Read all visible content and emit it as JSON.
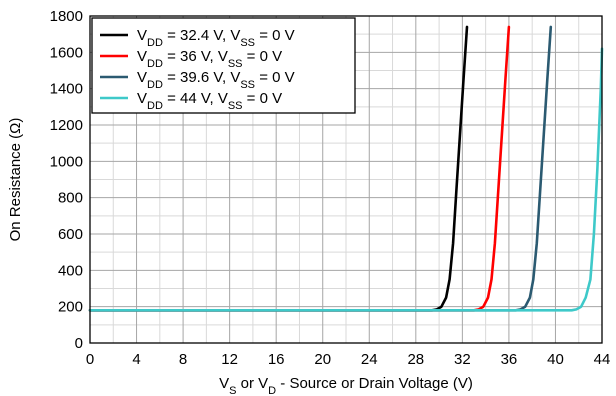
{
  "chart_data": {
    "type": "line",
    "xlabel": {
      "parts": [
        {
          "t": "V"
        },
        {
          "t": "S",
          "sub": true
        },
        {
          "t": " or V"
        },
        {
          "t": "D",
          "sub": true
        },
        {
          "t": " - Source or Drain Voltage (V)"
        }
      ]
    },
    "ylabel": "On Resistance (Ω)",
    "xlim": [
      0,
      44
    ],
    "ylim": [
      0,
      1800
    ],
    "xticks": [
      0,
      4,
      8,
      12,
      16,
      20,
      24,
      28,
      32,
      36,
      40,
      44
    ],
    "yticks": [
      0,
      200,
      400,
      600,
      800,
      1000,
      1200,
      1400,
      1600,
      1800
    ],
    "x_minor_step": 2,
    "y_minor_step": 100,
    "grid": true,
    "legend_position": "top-left",
    "series": [
      {
        "color": "#000000",
        "label": [
          {
            "t": "V"
          },
          {
            "t": "DD",
            "sub": true
          },
          {
            "t": " = 32.4 V, V"
          },
          {
            "t": "SS",
            "sub": true
          },
          {
            "t": " = 0 V"
          }
        ],
        "x": [
          0,
          29.4,
          29.8,
          30.2,
          30.6,
          30.9,
          31.2,
          31.5,
          31.8,
          32.1,
          32.4
        ],
        "y": [
          180,
          180,
          185,
          200,
          250,
          350,
          550,
          850,
          1150,
          1450,
          1740
        ]
      },
      {
        "color": "#ff0000",
        "label": [
          {
            "t": "V"
          },
          {
            "t": "DD",
            "sub": true
          },
          {
            "t": " = 36 V, V"
          },
          {
            "t": "SS",
            "sub": true
          },
          {
            "t": " = 0 V"
          }
        ],
        "x": [
          0,
          33.0,
          33.4,
          33.8,
          34.2,
          34.5,
          34.8,
          35.1,
          35.4,
          35.7,
          36.0
        ],
        "y": [
          180,
          180,
          185,
          200,
          250,
          350,
          550,
          850,
          1150,
          1450,
          1740
        ]
      },
      {
        "color": "#2b5a71",
        "label": [
          {
            "t": "V"
          },
          {
            "t": "DD",
            "sub": true
          },
          {
            "t": " = 39.6 V, V"
          },
          {
            "t": "SS",
            "sub": true
          },
          {
            "t": " = 0 V"
          }
        ],
        "x": [
          0,
          36.6,
          37.0,
          37.4,
          37.8,
          38.1,
          38.4,
          38.7,
          39.0,
          39.3,
          39.6
        ],
        "y": [
          180,
          180,
          185,
          200,
          250,
          350,
          550,
          850,
          1150,
          1450,
          1740
        ]
      },
      {
        "color": "#3ec9c9",
        "label": [
          {
            "t": "V"
          },
          {
            "t": "DD",
            "sub": true
          },
          {
            "t": " = 44 V, V"
          },
          {
            "t": "SS",
            "sub": true
          },
          {
            "t": " = 0 V"
          }
        ],
        "x": [
          0,
          41.4,
          41.8,
          42.2,
          42.6,
          43.0,
          43.3,
          43.6,
          43.9,
          44.0
        ],
        "y": [
          180,
          180,
          185,
          200,
          250,
          350,
          600,
          950,
          1400,
          1620
        ]
      }
    ]
  }
}
